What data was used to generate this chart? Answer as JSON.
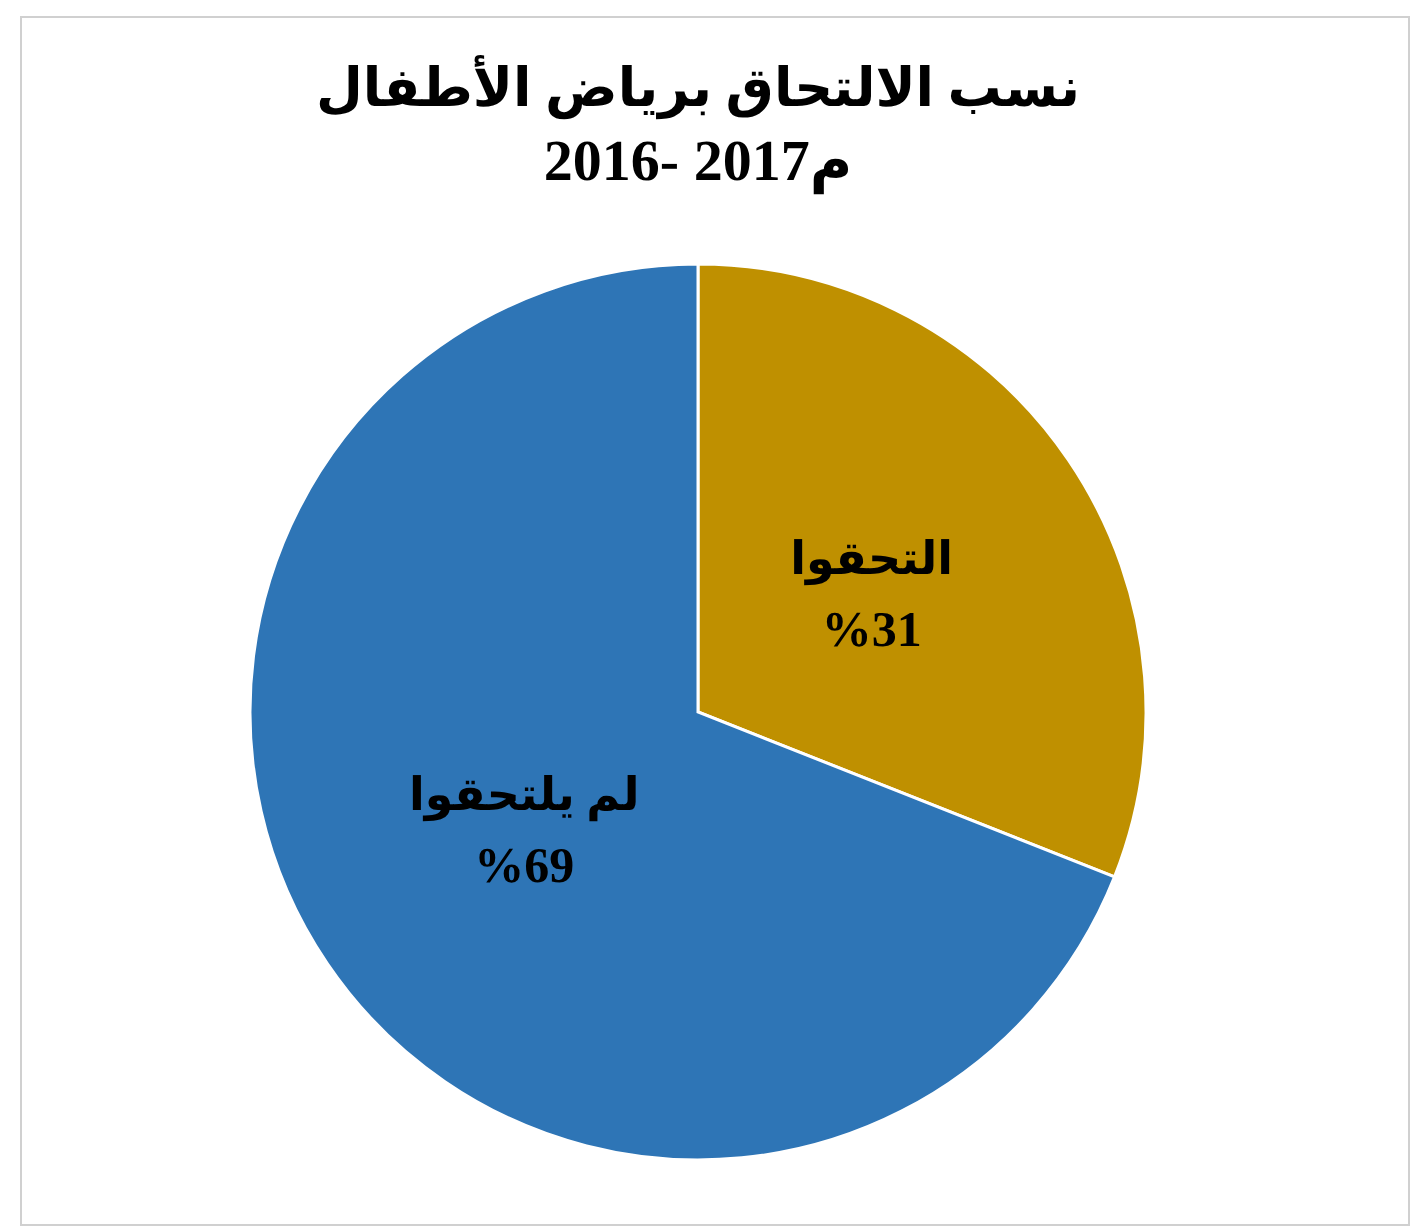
{
  "chart_data": {
    "type": "pie",
    "title": "نسب الالتحاق برياض الأطفال",
    "subtitle": "2016- 2017م",
    "categories": [
      "التحقوا",
      "لم يلتحقوا"
    ],
    "values": [
      31,
      69
    ],
    "colors": [
      "#bf9000",
      "#2e75b6"
    ],
    "value_labels": [
      "%31",
      "%69"
    ]
  }
}
